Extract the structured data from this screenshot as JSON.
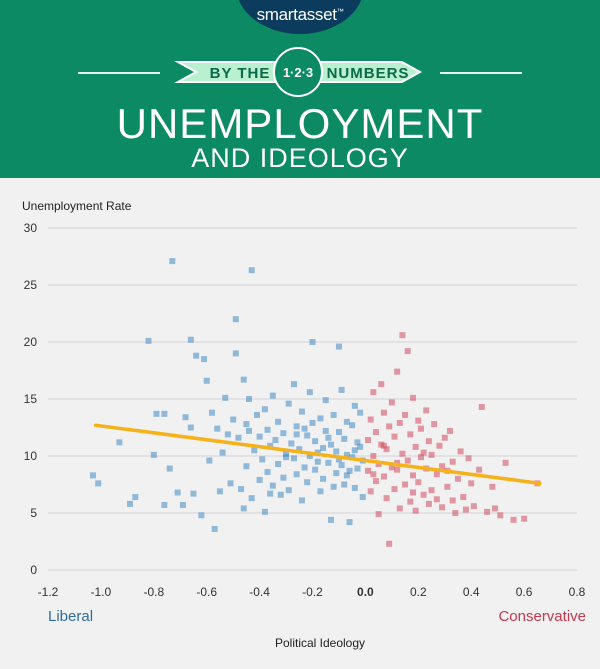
{
  "header": {
    "brand_prefix": "smart",
    "brand_suffix": "asset",
    "brand_mark": "™",
    "banner_left": "BY THE",
    "banner_badge": "1·2·3",
    "banner_right": "NUMBERS",
    "title_line1": "UNEMPLOYMENT",
    "title_line2": "AND IDEOLOGY",
    "colors": {
      "header_bg": "#0c8a63",
      "logo_bg": "#0b3c5d",
      "banner_bg": "#b9f0d0",
      "banner_text": "#0b6a4a"
    }
  },
  "chart_data": {
    "type": "scatter",
    "ylabel": "Unemployment Rate",
    "xlabel": "Political Ideology",
    "xlim": [
      -1.2,
      0.8
    ],
    "ylim": [
      0,
      30
    ],
    "xticks": [
      "-1.2",
      "-1.0",
      "-0.8",
      "-0.6",
      "-0.4",
      "-0.2",
      "0.0",
      "0.2",
      "0.4",
      "0.6",
      "0.8"
    ],
    "yticks": [
      "0",
      "5",
      "10",
      "15",
      "20",
      "25",
      "30"
    ],
    "grid": "horizontal",
    "left_annotation": "Liberal",
    "right_annotation": "Conservative",
    "colors": {
      "liberal": "#3f88c5",
      "conservative": "#d24b5d",
      "trend": "#f5b21a"
    },
    "trendline": {
      "x": [
        -1.02,
        0.66
      ],
      "y": [
        12.7,
        7.6
      ]
    },
    "series": [
      {
        "key": "liberal",
        "points": [
          [
            -1.03,
            8.3
          ],
          [
            -1.01,
            7.6
          ],
          [
            -0.93,
            11.2
          ],
          [
            -0.89,
            5.8
          ],
          [
            -0.87,
            6.4
          ],
          [
            -0.82,
            20.1
          ],
          [
            -0.8,
            10.1
          ],
          [
            -0.79,
            13.7
          ],
          [
            -0.76,
            13.7
          ],
          [
            -0.76,
            5.7
          ],
          [
            -0.74,
            8.9
          ],
          [
            -0.73,
            27.1
          ],
          [
            -0.71,
            6.8
          ],
          [
            -0.69,
            5.7
          ],
          [
            -0.68,
            13.4
          ],
          [
            -0.66,
            12.5
          ],
          [
            -0.66,
            20.2
          ],
          [
            -0.65,
            6.7
          ],
          [
            -0.64,
            18.8
          ],
          [
            -0.62,
            4.8
          ],
          [
            -0.61,
            18.5
          ],
          [
            -0.6,
            16.6
          ],
          [
            -0.59,
            9.6
          ],
          [
            -0.58,
            13.8
          ],
          [
            -0.57,
            3.6
          ],
          [
            -0.56,
            12.4
          ],
          [
            -0.55,
            6.9
          ],
          [
            -0.54,
            10.3
          ],
          [
            -0.53,
            15.1
          ],
          [
            -0.52,
            11.9
          ],
          [
            -0.51,
            7.6
          ],
          [
            -0.5,
            13.2
          ],
          [
            -0.49,
            22.0
          ],
          [
            -0.49,
            19.0
          ],
          [
            -0.48,
            11.6
          ],
          [
            -0.47,
            7.1
          ],
          [
            -0.46,
            16.7
          ],
          [
            -0.46,
            5.4
          ],
          [
            -0.45,
            12.8
          ],
          [
            -0.45,
            9.1
          ],
          [
            -0.44,
            15.0
          ],
          [
            -0.43,
            26.3
          ],
          [
            -0.43,
            6.3
          ],
          [
            -0.42,
            10.5
          ],
          [
            -0.41,
            13.6
          ],
          [
            -0.4,
            7.9
          ],
          [
            -0.4,
            11.7
          ],
          [
            -0.39,
            9.7
          ],
          [
            -0.38,
            14.1
          ],
          [
            -0.38,
            5.1
          ],
          [
            -0.37,
            12.3
          ],
          [
            -0.37,
            8.6
          ],
          [
            -0.36,
            10.9
          ],
          [
            -0.35,
            15.3
          ],
          [
            -0.35,
            7.4
          ],
          [
            -0.34,
            11.4
          ],
          [
            -0.33,
            9.3
          ],
          [
            -0.33,
            13.0
          ],
          [
            -0.32,
            6.6
          ],
          [
            -0.31,
            12.0
          ],
          [
            -0.31,
            8.1
          ],
          [
            -0.3,
            10.2
          ],
          [
            -0.29,
            14.6
          ],
          [
            -0.29,
            7.0
          ],
          [
            -0.28,
            11.1
          ],
          [
            -0.27,
            9.8
          ],
          [
            -0.27,
            16.3
          ],
          [
            -0.26,
            12.6
          ],
          [
            -0.26,
            8.4
          ],
          [
            -0.25,
            10.6
          ],
          [
            -0.24,
            13.9
          ],
          [
            -0.24,
            6.1
          ],
          [
            -0.23,
            9.0
          ],
          [
            -0.22,
            11.8
          ],
          [
            -0.22,
            7.7
          ],
          [
            -0.21,
            15.6
          ],
          [
            -0.21,
            10.0
          ],
          [
            -0.2,
            20.0
          ],
          [
            -0.2,
            12.9
          ],
          [
            -0.19,
            8.8
          ],
          [
            -0.19,
            11.3
          ],
          [
            -0.18,
            9.5
          ],
          [
            -0.17,
            13.3
          ],
          [
            -0.17,
            6.9
          ],
          [
            -0.16,
            10.7
          ],
          [
            -0.16,
            8.0
          ],
          [
            -0.15,
            14.9
          ],
          [
            -0.15,
            12.2
          ],
          [
            -0.14,
            9.4
          ],
          [
            -0.13,
            4.4
          ],
          [
            -0.13,
            11.0
          ],
          [
            -0.12,
            7.3
          ],
          [
            -0.12,
            13.6
          ],
          [
            -0.11,
            10.4
          ],
          [
            -0.11,
            8.5
          ],
          [
            -0.1,
            19.6
          ],
          [
            -0.1,
            12.1
          ],
          [
            -0.09,
            9.2
          ],
          [
            -0.09,
            15.8
          ],
          [
            -0.08,
            7.5
          ],
          [
            -0.08,
            11.5
          ],
          [
            -0.07,
            10.1
          ],
          [
            -0.07,
            13.0
          ],
          [
            -0.06,
            8.7
          ],
          [
            -0.06,
            4.2
          ],
          [
            -0.05,
            12.7
          ],
          [
            -0.05,
            9.9
          ],
          [
            -0.04,
            14.4
          ],
          [
            -0.04,
            7.2
          ],
          [
            -0.03,
            11.2
          ],
          [
            -0.03,
            8.9
          ],
          [
            -0.02,
            10.8
          ],
          [
            -0.02,
            13.8
          ],
          [
            -0.01,
            6.4
          ],
          [
            -0.01,
            9.6
          ],
          [
            -0.44,
            12.2
          ],
          [
            -0.36,
            6.7
          ],
          [
            -0.3,
            9.9
          ],
          [
            -0.26,
            11.9
          ],
          [
            -0.23,
            12.4
          ],
          [
            -0.18,
            10.3
          ],
          [
            -0.14,
            11.6
          ],
          [
            -0.1,
            9.7
          ],
          [
            -0.07,
            8.3
          ],
          [
            -0.04,
            10.5
          ]
        ]
      },
      {
        "key": "conservative",
        "points": [
          [
            0.01,
            11.4
          ],
          [
            0.01,
            8.7
          ],
          [
            0.02,
            13.2
          ],
          [
            0.02,
            6.9
          ],
          [
            0.03,
            10.0
          ],
          [
            0.03,
            15.6
          ],
          [
            0.04,
            7.8
          ],
          [
            0.04,
            12.1
          ],
          [
            0.05,
            9.3
          ],
          [
            0.05,
            4.9
          ],
          [
            0.06,
            16.3
          ],
          [
            0.06,
            11.0
          ],
          [
            0.07,
            8.2
          ],
          [
            0.07,
            13.8
          ],
          [
            0.08,
            6.3
          ],
          [
            0.08,
            10.6
          ],
          [
            0.09,
            2.3
          ],
          [
            0.09,
            12.6
          ],
          [
            0.1,
            9.0
          ],
          [
            0.1,
            14.7
          ],
          [
            0.11,
            7.1
          ],
          [
            0.11,
            11.7
          ],
          [
            0.12,
            17.4
          ],
          [
            0.12,
            8.8
          ],
          [
            0.13,
            5.4
          ],
          [
            0.13,
            12.9
          ],
          [
            0.14,
            20.6
          ],
          [
            0.14,
            10.2
          ],
          [
            0.15,
            7.5
          ],
          [
            0.15,
            13.6
          ],
          [
            0.16,
            19.2
          ],
          [
            0.16,
            9.6
          ],
          [
            0.17,
            6.0
          ],
          [
            0.17,
            11.9
          ],
          [
            0.18,
            15.1
          ],
          [
            0.18,
            8.3
          ],
          [
            0.19,
            10.8
          ],
          [
            0.19,
            5.2
          ],
          [
            0.2,
            13.1
          ],
          [
            0.2,
            7.7
          ],
          [
            0.21,
            9.9
          ],
          [
            0.21,
            12.4
          ],
          [
            0.22,
            6.6
          ],
          [
            0.23,
            14.0
          ],
          [
            0.23,
            8.9
          ],
          [
            0.24,
            11.3
          ],
          [
            0.24,
            5.8
          ],
          [
            0.25,
            10.1
          ],
          [
            0.25,
            7.0
          ],
          [
            0.26,
            12.8
          ],
          [
            0.27,
            8.4
          ],
          [
            0.27,
            6.2
          ],
          [
            0.28,
            10.9
          ],
          [
            0.29,
            9.1
          ],
          [
            0.29,
            5.5
          ],
          [
            0.3,
            11.6
          ],
          [
            0.31,
            7.3
          ],
          [
            0.31,
            8.7
          ],
          [
            0.32,
            12.2
          ],
          [
            0.33,
            6.1
          ],
          [
            0.33,
            9.5
          ],
          [
            0.34,
            5.0
          ],
          [
            0.35,
            8.0
          ],
          [
            0.36,
            10.4
          ],
          [
            0.37,
            6.4
          ],
          [
            0.38,
            5.3
          ],
          [
            0.39,
            9.8
          ],
          [
            0.4,
            7.6
          ],
          [
            0.41,
            5.6
          ],
          [
            0.43,
            8.8
          ],
          [
            0.44,
            14.3
          ],
          [
            0.46,
            5.1
          ],
          [
            0.48,
            7.3
          ],
          [
            0.49,
            5.4
          ],
          [
            0.51,
            4.8
          ],
          [
            0.53,
            9.4
          ],
          [
            0.56,
            4.4
          ],
          [
            0.6,
            4.5
          ],
          [
            0.65,
            7.6
          ],
          [
            0.22,
            10.3
          ],
          [
            0.12,
            9.4
          ],
          [
            0.07,
            10.9
          ],
          [
            0.03,
            8.4
          ],
          [
            0.18,
            6.8
          ]
        ]
      }
    ]
  }
}
